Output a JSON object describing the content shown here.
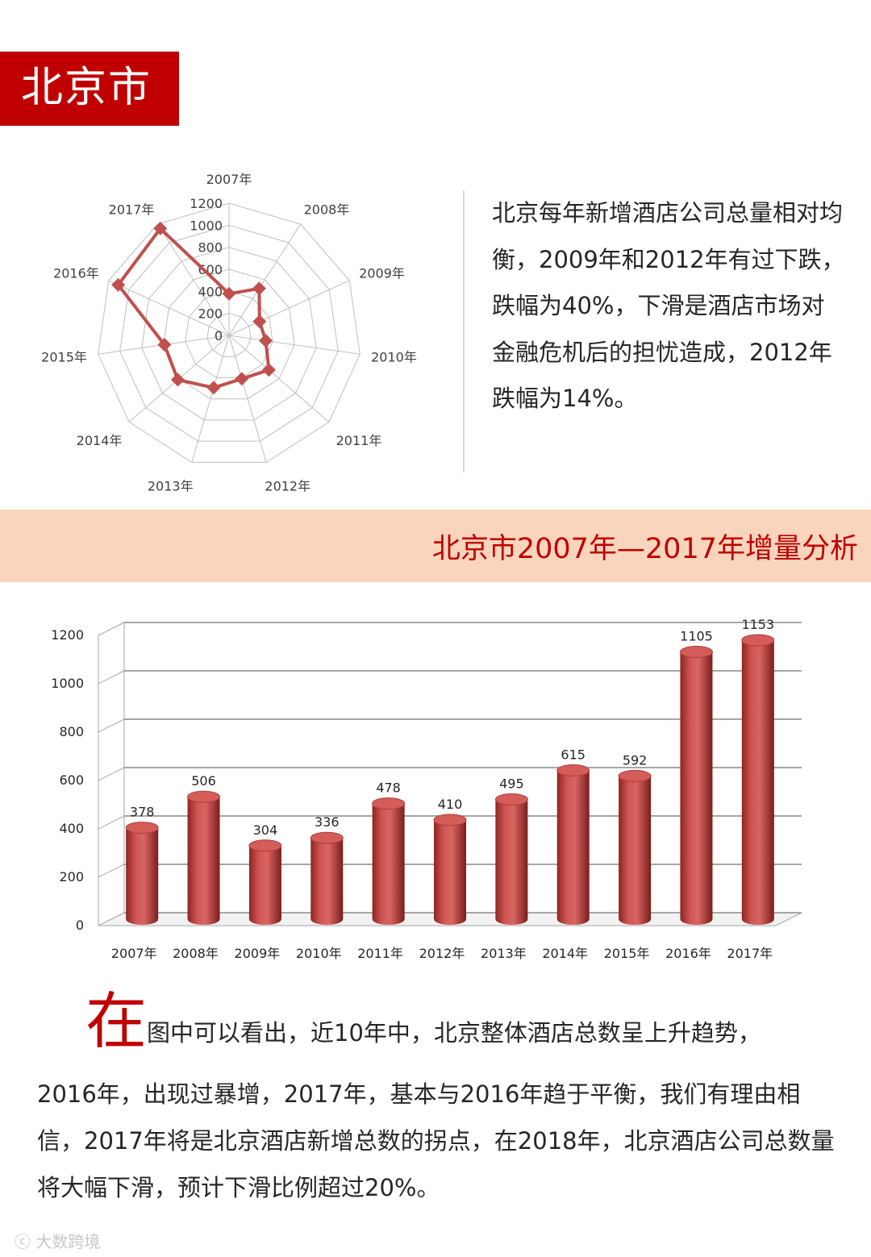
{
  "header": {
    "title": "北京市"
  },
  "section1": {
    "paragraph": "北京每年新增酒店公司总量相对均衡，2009年和2012年有过下跌，跌幅为40%，下滑是酒店市场对金融危机后的担忧造成，2012年跌幅为14%。"
  },
  "section2": {
    "band_title": "北京市2007年—2017年增量分析"
  },
  "summary": {
    "big_char": "在",
    "first_line": "图中可以看出，近10年中，北京整体酒店总数呈上升趋势，",
    "rest": "2016年，出现过暴增，2017年，基本与2016年趋于平衡，我们有理由相信，2017年将是北京酒店新增总数的拐点，在2018年，北京酒店公司总数量将大幅下滑，预计下滑比例超过20%。"
  },
  "watermark": "大数跨境",
  "chart_data": [
    {
      "type": "radar",
      "categories": [
        "2007年",
        "2008年",
        "2009年",
        "2010年",
        "2011年",
        "2012年",
        "2013年",
        "2014年",
        "2015年",
        "2016年",
        "2017年"
      ],
      "values": [
        378,
        506,
        304,
        336,
        478,
        410,
        495,
        615,
        592,
        1105,
        1153
      ],
      "ylim": [
        0,
        1200
      ],
      "ticks": [
        "0",
        "200",
        "400",
        "600",
        "800",
        "1000",
        "1200"
      ],
      "series_color": "#c0504d"
    },
    {
      "type": "bar",
      "categories": [
        "2007年",
        "2008年",
        "2009年",
        "2010年",
        "2011年",
        "2012年",
        "2013年",
        "2014年",
        "2015年",
        "2016年",
        "2017年"
      ],
      "values": [
        378,
        506,
        304,
        336,
        478,
        410,
        495,
        615,
        592,
        1105,
        1153
      ],
      "data_labels": [
        "378",
        "506",
        "304",
        "336",
        "478",
        "410",
        "495",
        "615",
        "592",
        "1105",
        "1153"
      ],
      "ylim": [
        0,
        1200
      ],
      "ticks": [
        "0",
        "200",
        "400",
        "600",
        "800",
        "1000",
        "1200"
      ],
      "grid": true,
      "bar_color": "#c0504d"
    }
  ]
}
